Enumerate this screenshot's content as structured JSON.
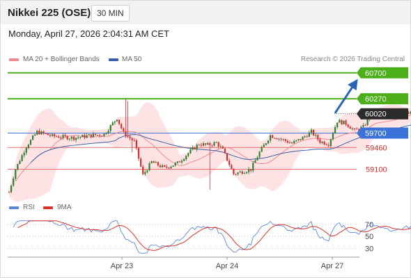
{
  "header": {
    "title": "Nikkei 225 (OSE)",
    "timeframe": "30 MIN"
  },
  "datetime": "Monday, April 27, 2026 2:04:31 AM CET",
  "copyright": "Research © 2026 Trading Central",
  "colors": {
    "bull": "#2e7d32",
    "bear": "#d32f2f",
    "resistance": "#4caf1a",
    "support": "#ef6b6b",
    "pivot": "#3a72d8",
    "current": "#2b2b2b",
    "bollinger_fill": "#fde3e3",
    "ma20": "#f08a8a",
    "ma50": "#3a5fa8",
    "rsi": "#5b87da",
    "rsi_ma": "#d9342b",
    "arrow": "#2a64b5"
  },
  "chart_data": [
    {
      "type": "candlestick",
      "title": "Nikkei 225 (OSE)",
      "legend": [
        {
          "name": "MA 20 + Bollinger Bands",
          "color": "#f08a8a"
        },
        {
          "name": "MA 50",
          "color": "#3a5fa8"
        }
      ],
      "legend_position": "top-left",
      "x_ticks": [
        "Apr 23",
        "Apr 24",
        "Apr 27"
      ],
      "ylim": [
        58690,
        60790
      ],
      "levels": [
        {
          "value": 60700,
          "label": "60700",
          "kind": "resistance"
        },
        {
          "value": 60270,
          "label": "60270",
          "kind": "resistance"
        },
        {
          "value": 60020,
          "label": "60020",
          "kind": "current"
        },
        {
          "value": 59700,
          "label": "59700",
          "kind": "pivot"
        },
        {
          "value": 59460,
          "label": "59460",
          "kind": "support"
        },
        {
          "value": 59100,
          "label": "59100",
          "kind": "support"
        }
      ],
      "forecast": {
        "from": 60020,
        "to": 60570,
        "direction": "up"
      },
      "grid": false
    },
    {
      "type": "line",
      "title": "",
      "series": [
        {
          "name": "RSI"
        },
        {
          "name": "9MA"
        }
      ],
      "legend_position": "top-left",
      "ylim": [
        20,
        78
      ],
      "y_ticks": [
        "70",
        "50",
        "30"
      ],
      "levels": [
        70,
        50,
        30
      ]
    }
  ]
}
